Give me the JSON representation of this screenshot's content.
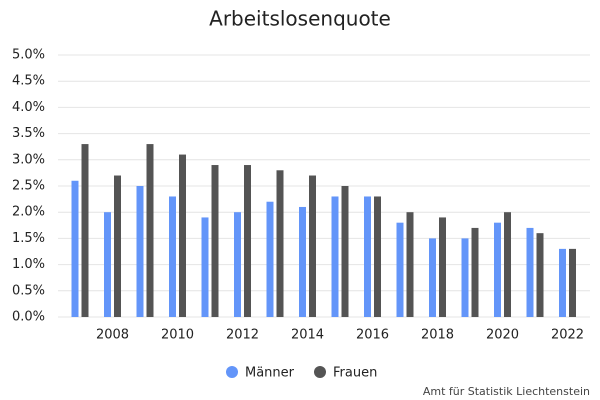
{
  "chart_data": {
    "type": "bar",
    "title": "Arbeitslosenquote",
    "categories": [
      null,
      "2008",
      null,
      "2010",
      null,
      "2012",
      null,
      "2014",
      null,
      "2016",
      null,
      "2018",
      null,
      "2020",
      null,
      "2022"
    ],
    "series": [
      {
        "name": "Männer",
        "color": "#6395f9",
        "values": [
          2.6,
          2.0,
          2.5,
          2.3,
          1.9,
          2.0,
          2.2,
          2.1,
          2.3,
          2.3,
          1.8,
          1.5,
          1.5,
          1.8,
          1.7,
          1.3
        ]
      },
      {
        "name": "Frauen",
        "color": "#545454",
        "values": [
          3.3,
          2.7,
          3.3,
          3.1,
          2.9,
          2.9,
          2.8,
          2.7,
          2.5,
          2.3,
          2.0,
          1.9,
          1.7,
          2.0,
          1.6,
          1.3
        ]
      }
    ],
    "ylim": [
      0,
      5
    ],
    "yticks": [
      {
        "value": 0,
        "label": "0.0%"
      },
      {
        "value": 0.5,
        "label": "0.5%"
      },
      {
        "value": 1,
        "label": "1.0%"
      },
      {
        "value": 1.5,
        "label": "1.5%"
      },
      {
        "value": 2,
        "label": "2.0%"
      },
      {
        "value": 2.5,
        "label": "2.5%"
      },
      {
        "value": 3,
        "label": "3.0%"
      },
      {
        "value": 3.5,
        "label": "3.5%"
      },
      {
        "value": 4,
        "label": "4.0%"
      },
      {
        "value": 4.5,
        "label": "4.5%"
      },
      {
        "value": 5,
        "label": "5.0%"
      }
    ],
    "grid": true,
    "legend": "bottom",
    "source": "Amt für Statistik Liechtenstein"
  }
}
